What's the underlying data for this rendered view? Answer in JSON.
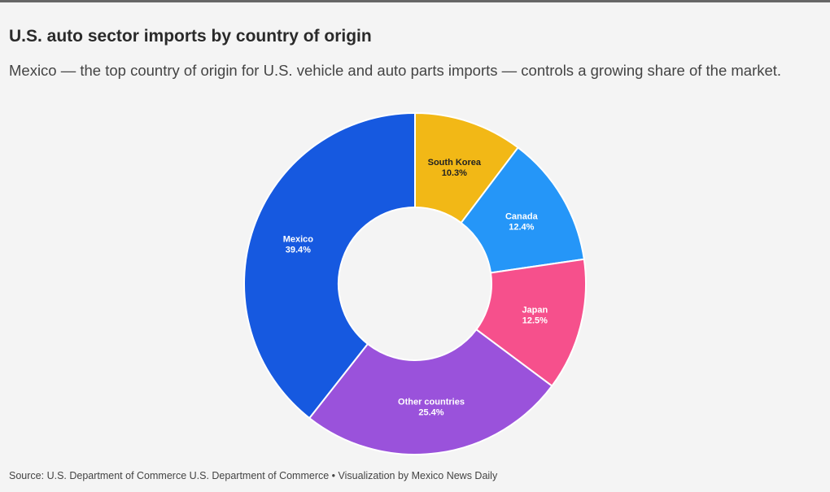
{
  "title": "U.S. auto sector imports by country of origin",
  "subtitle": "Mexico — the top country of origin for U.S. vehicle and auto parts imports — controls a growing share of the market.",
  "source": {
    "label": "Source: ",
    "text": "U.S. Department of Commerce U.S. Department of Commerce",
    "separator": " • ",
    "credit": "Visualization by Mexico News Daily"
  },
  "chart_data": {
    "type": "pie",
    "variant": "donut",
    "unit": "%",
    "slices": [
      {
        "label": "South Korea",
        "value": 10.3,
        "display": "10.3%",
        "color": "#f2b816",
        "text_color": "#222222"
      },
      {
        "label": "Canada",
        "value": 12.4,
        "display": "12.4%",
        "color": "#2596f8",
        "text_color": "#ffffff"
      },
      {
        "label": "Japan",
        "value": 12.5,
        "display": "12.5%",
        "color": "#f6508c",
        "text_color": "#ffffff"
      },
      {
        "label": "Other countries",
        "value": 25.4,
        "display": "25.4%",
        "color": "#9a52db",
        "text_color": "#ffffff"
      },
      {
        "label": "Mexico",
        "value": 39.4,
        "display": "39.4%",
        "color": "#1659e0",
        "text_color": "#ffffff"
      }
    ]
  }
}
